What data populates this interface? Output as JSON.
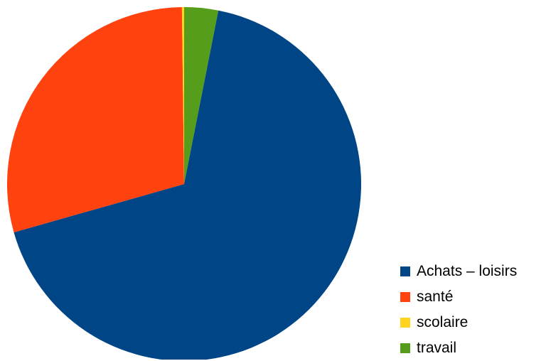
{
  "chart_data": {
    "type": "pie",
    "categories": [
      "Achats – loisirs",
      "santé",
      "scolaire",
      "travail"
    ],
    "values": [
      67.5,
      29.2,
      0.2,
      3.1
    ],
    "colors": [
      "#004586",
      "#ff420e",
      "#ffd320",
      "#579d1c"
    ],
    "start": "12 o'clock",
    "direction": "clockwise",
    "first_slice_drawn": "travail",
    "legend_position": "bottom-right"
  },
  "legend": {
    "items": [
      {
        "label": "Achats – loisirs",
        "color": "#004586"
      },
      {
        "label": "santé",
        "color": "#ff420e"
      },
      {
        "label": "scolaire",
        "color": "#ffd320"
      },
      {
        "label": "travail",
        "color": "#579d1c"
      }
    ]
  }
}
